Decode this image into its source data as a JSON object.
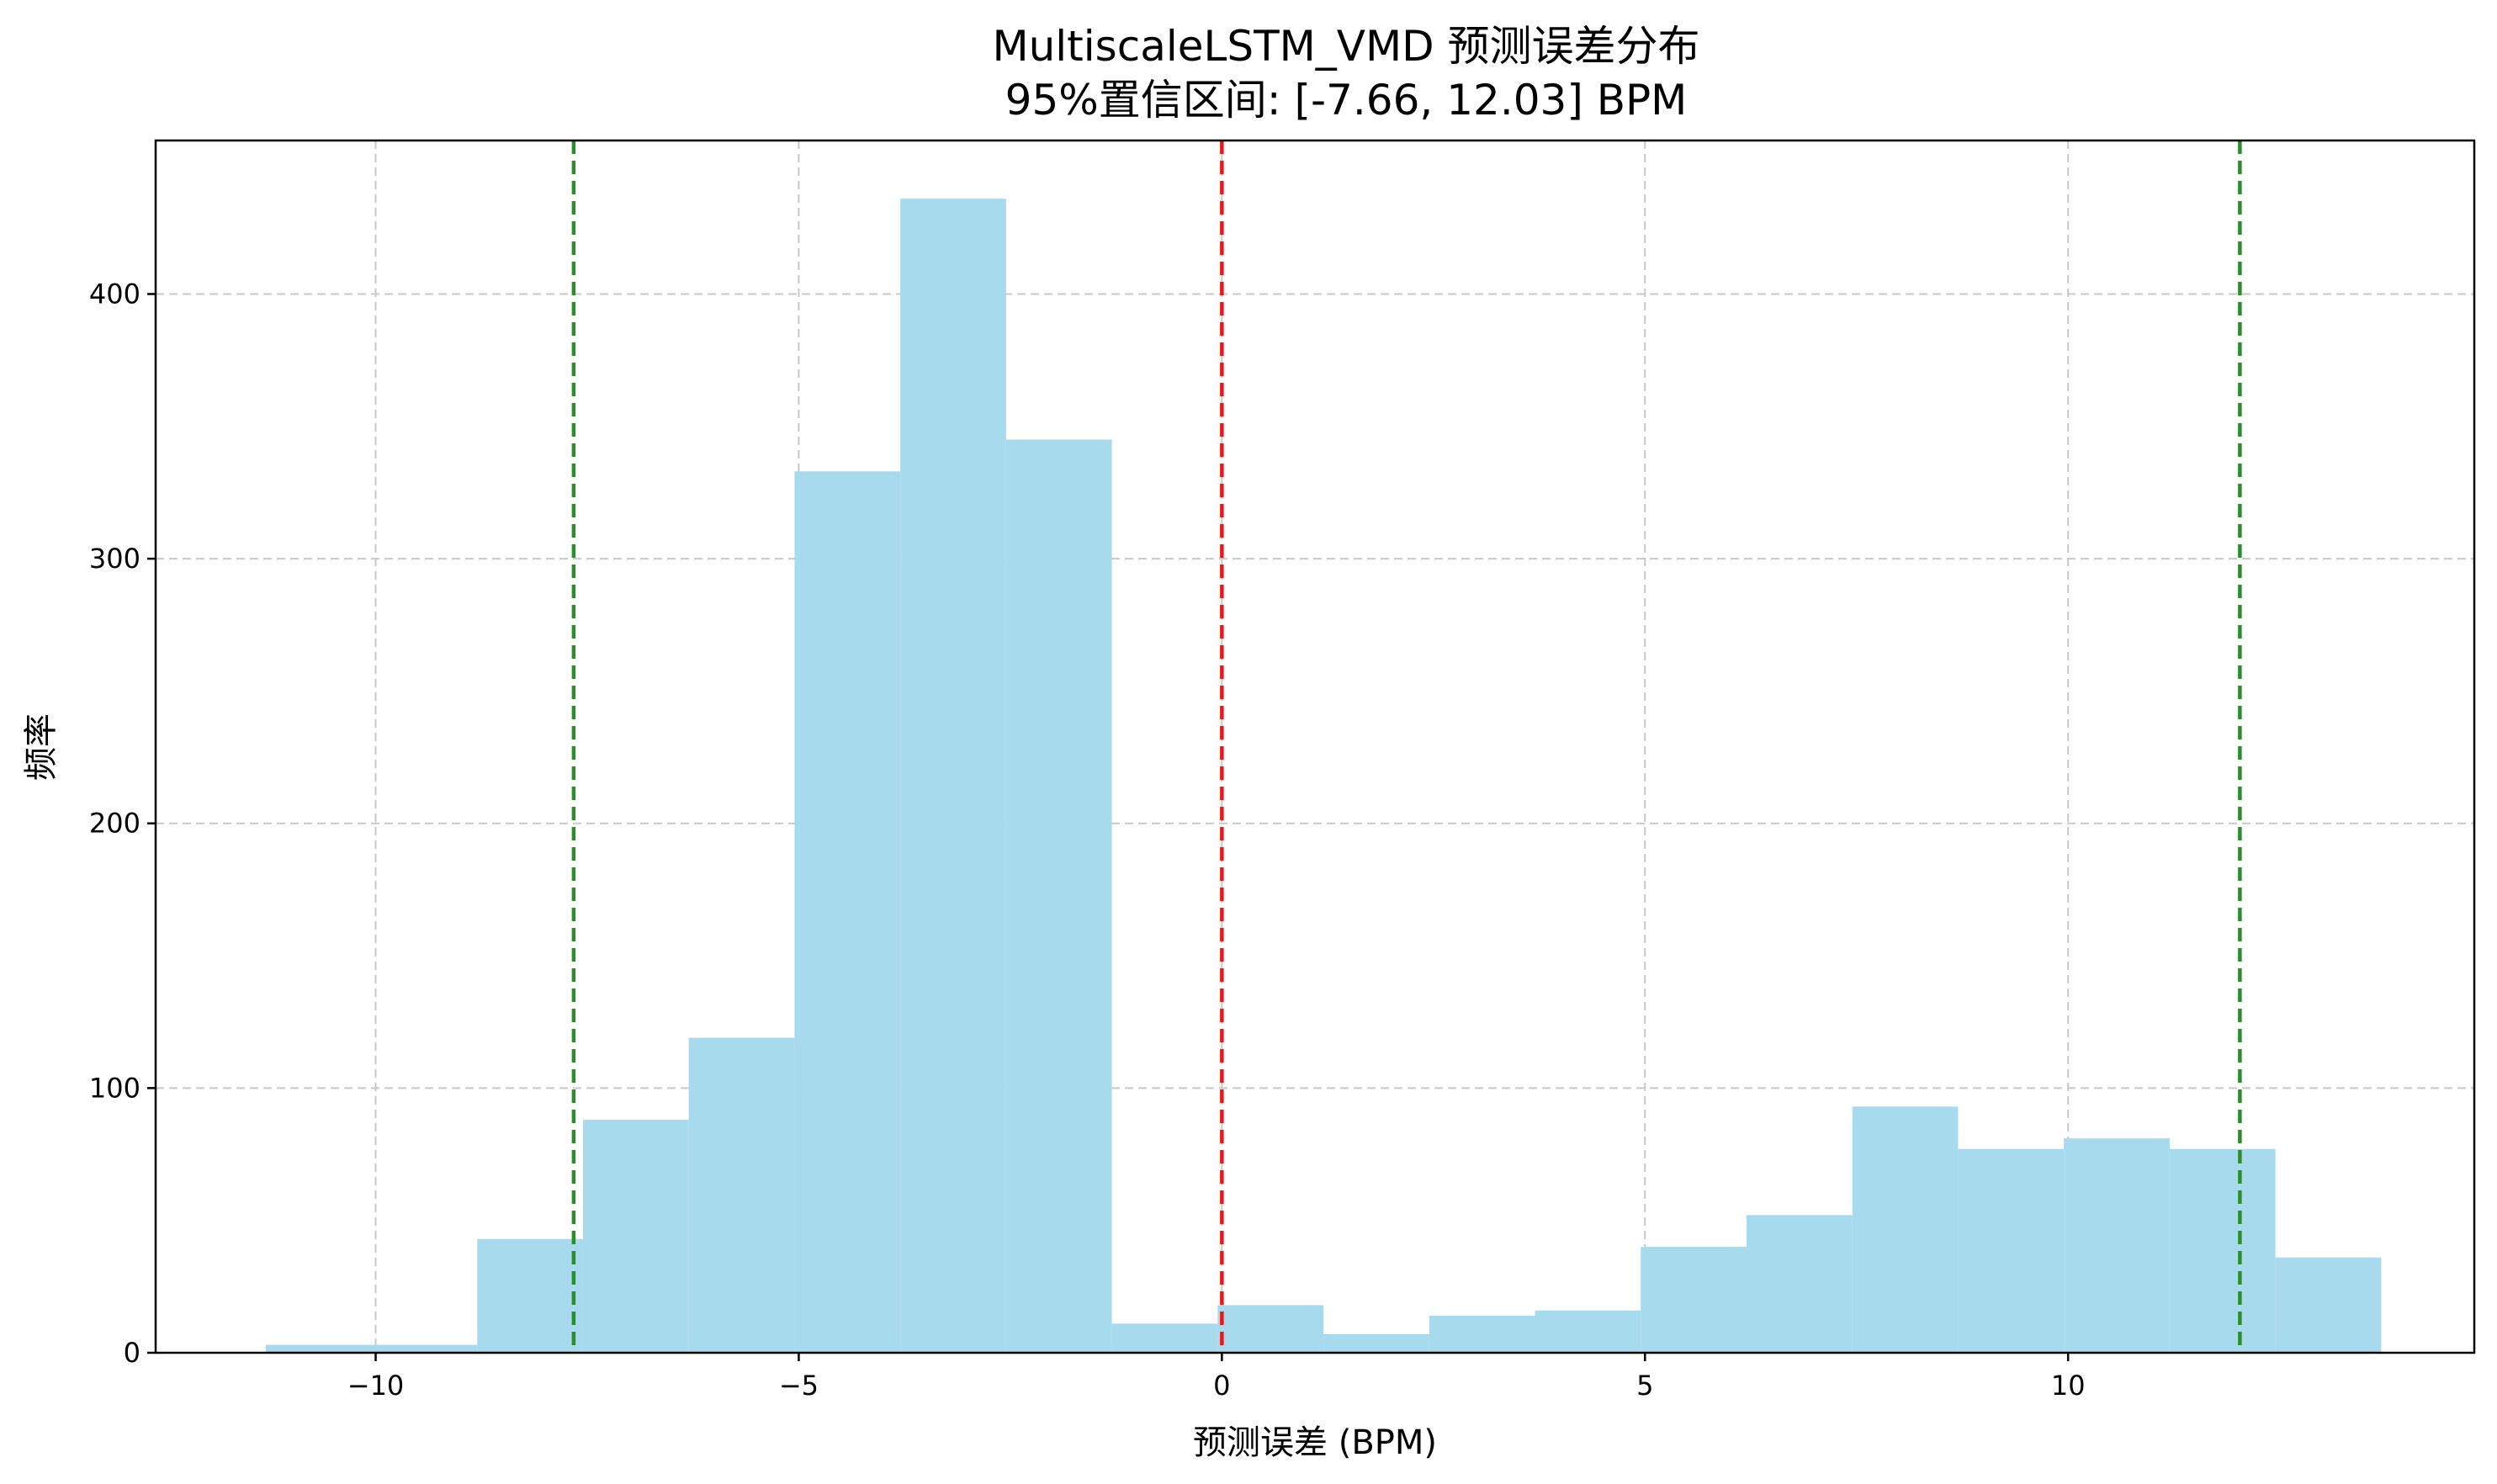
{
  "chart_data": {
    "type": "bar",
    "title": "MultiscaleLSTM_VMD 预测误差分布",
    "subtitle": "95%置信区间: [-7.66, 12.03] BPM",
    "xlabel": "预测误差 (BPM)",
    "ylabel": "频率",
    "xlim": [
      -12.6,
      14.8
    ],
    "ylim": [
      0,
      458
    ],
    "xticks": [
      -10,
      -5,
      0,
      5,
      10
    ],
    "yticks": [
      0,
      100,
      200,
      300,
      400
    ],
    "grid": true,
    "bin_edges": [
      -11.3,
      -8.8,
      -7.55,
      -6.3,
      -5.05,
      -3.8,
      -2.55,
      -1.3,
      -0.05,
      1.2,
      2.45,
      3.7,
      4.95,
      6.2,
      7.45,
      8.7,
      9.95,
      11.2,
      12.45,
      13.7
    ],
    "values": [
      3,
      43,
      88,
      119,
      333,
      436,
      345,
      11,
      18,
      7,
      14,
      16,
      40,
      52,
      93,
      77,
      81,
      77,
      36
    ],
    "reference_lines": [
      {
        "x": 0,
        "color": "#e31a1c"
      },
      {
        "x": -7.66,
        "color": "#2e8b2e"
      },
      {
        "x": 12.03,
        "color": "#2e8b2e"
      }
    ],
    "bar_color": "#a8daee"
  }
}
